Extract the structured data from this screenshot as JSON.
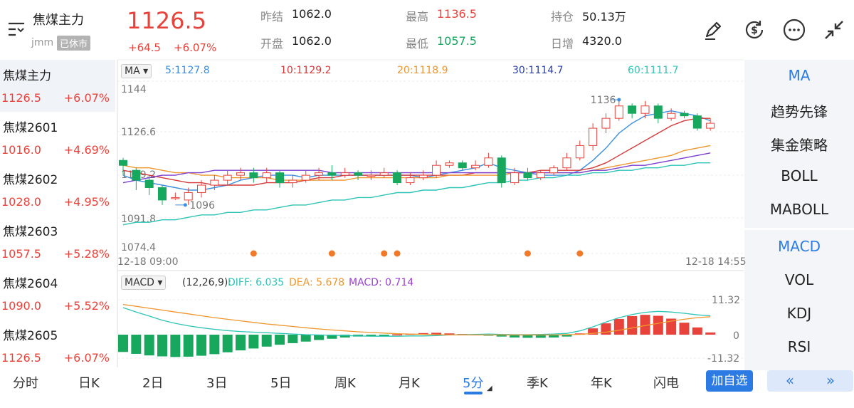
{
  "header": {
    "title": "焦煤主力",
    "code": "jmm",
    "status_badge": "已休市",
    "price": "1126.5",
    "change": "+64.5",
    "change_pct": "+6.07%",
    "stats": [
      {
        "label": "昨结",
        "value": "1062.0",
        "color": "#222222"
      },
      {
        "label": "最高",
        "value": "1136.5",
        "color": "#e8433b"
      },
      {
        "label": "持仓",
        "value": "50.13万",
        "color": "#222222"
      },
      {
        "label": "开盘",
        "value": "1062.0",
        "color": "#222222"
      },
      {
        "label": "最低",
        "value": "1057.5",
        "color": "#17a85e"
      },
      {
        "label": "日增",
        "value": "4320.0",
        "color": "#222222"
      }
    ],
    "toolbar_icons": [
      "pen-icon",
      "currency-swap-icon",
      "more-icon",
      "collapse-icon"
    ]
  },
  "contracts": [
    {
      "name": "焦煤主力",
      "price": "1126.5",
      "pct": "+6.07%"
    },
    {
      "name": "焦煤2601",
      "price": "1016.0",
      "pct": "+4.69%"
    },
    {
      "name": "焦煤2602",
      "price": "1028.0",
      "pct": "+4.95%"
    },
    {
      "name": "焦煤2603",
      "price": "1057.5",
      "pct": "+5.28%"
    },
    {
      "name": "焦煤2604",
      "price": "1090.0",
      "pct": "+5.52%"
    },
    {
      "name": "焦煤2605",
      "price": "1126.5",
      "pct": "+6.07%"
    }
  ],
  "indicators_main": [
    "MA",
    "趋势先锋",
    "集金策略",
    "BOLL",
    "MABOLL"
  ],
  "indicators_sub": [
    "MACD",
    "VOL",
    "KDJ",
    "RSI"
  ],
  "ma_legend": {
    "selector": "MA",
    "items": [
      {
        "text": "5:1127.8",
        "color": "#3b8fe0"
      },
      {
        "text": "10:1129.2",
        "color": "#d63a3a"
      },
      {
        "text": "20:1118.9",
        "color": "#f0962e"
      },
      {
        "text": "30:1114.7",
        "color": "#2a3fa8"
      },
      {
        "text": "60:1111.7",
        "color": "#2ec4b6"
      }
    ]
  },
  "macd_legend": {
    "selector": "MACD",
    "params": "(12,26,9):",
    "diff": "DIFF: 6.035",
    "dea": "DEA: 5.678",
    "macd": "MACD: 0.714",
    "colors": {
      "diff": "#2ec4b6",
      "dea": "#f0962e",
      "macd": "#9b3fd1"
    }
  },
  "axis": {
    "price_labels": [
      "1144",
      "1126.6",
      "1109.2",
      "1091.8",
      "1074.4"
    ],
    "high_marker": "1136",
    "low_marker": "1096",
    "time_start": "12-18 09:00",
    "time_end": "12-18 14:55",
    "macd_labels": [
      "11.32",
      "0",
      "-11.32"
    ]
  },
  "tabs": [
    "分时",
    "日K",
    "2日",
    "3日",
    "5日",
    "周K",
    "月K",
    "5分",
    "季K",
    "年K",
    "闪电"
  ],
  "active_tab": "5分",
  "add_button": "加自选",
  "nav_prev": "«",
  "nav_next": "»",
  "colors": {
    "up": "#e8433b",
    "down": "#17a85e",
    "accent": "#2c7be5"
  },
  "chart_data": {
    "type": "candlestick",
    "interval": "5分",
    "candles": [
      [
        1112,
        1110,
        1113,
        1106
      ],
      [
        1108,
        1104,
        1109,
        1100
      ],
      [
        1104,
        1101,
        1106,
        1098
      ],
      [
        1101,
        1096,
        1102,
        1094
      ],
      [
        1097,
        1097,
        1099,
        1096
      ],
      [
        1096,
        1099,
        1101,
        1094
      ],
      [
        1099,
        1102,
        1104,
        1097
      ],
      [
        1102,
        1104,
        1106,
        1100
      ],
      [
        1104,
        1106,
        1108,
        1102
      ],
      [
        1106,
        1107,
        1109,
        1104
      ],
      [
        1107,
        1105,
        1109,
        1103
      ],
      [
        1105,
        1107,
        1109,
        1103
      ],
      [
        1107,
        1103,
        1108,
        1101
      ],
      [
        1103,
        1104,
        1106,
        1101
      ],
      [
        1104,
        1106,
        1108,
        1103
      ],
      [
        1106,
        1107,
        1109,
        1104
      ],
      [
        1107,
        1106,
        1110,
        1104
      ],
      [
        1106,
        1107,
        1109,
        1105
      ],
      [
        1107,
        1106,
        1108,
        1104
      ],
      [
        1106,
        1106,
        1108,
        1104
      ],
      [
        1106,
        1107,
        1109,
        1105
      ],
      [
        1107,
        1103,
        1108,
        1102
      ],
      [
        1103,
        1105,
        1107,
        1102
      ],
      [
        1105,
        1106,
        1108,
        1104
      ],
      [
        1106,
        1110,
        1112,
        1105
      ],
      [
        1110,
        1111,
        1112,
        1109
      ],
      [
        1111,
        1109,
        1112,
        1108
      ],
      [
        1109,
        1110,
        1112,
        1108
      ],
      [
        1110,
        1113,
        1115,
        1109
      ],
      [
        1113,
        1103,
        1114,
        1101
      ],
      [
        1103,
        1107,
        1109,
        1102
      ],
      [
        1107,
        1105,
        1109,
        1104
      ],
      [
        1105,
        1107,
        1108,
        1104
      ],
      [
        1107,
        1109,
        1110,
        1106
      ],
      [
        1109,
        1113,
        1115,
        1108
      ],
      [
        1113,
        1118,
        1120,
        1112
      ],
      [
        1118,
        1125,
        1127,
        1116
      ],
      [
        1125,
        1129,
        1131,
        1123
      ],
      [
        1129,
        1134,
        1136,
        1128
      ],
      [
        1134,
        1131,
        1135,
        1129
      ],
      [
        1131,
        1134,
        1136,
        1129
      ],
      [
        1134,
        1129,
        1135,
        1127
      ],
      [
        1129,
        1131,
        1133,
        1128
      ],
      [
        1131,
        1130,
        1132,
        1129
      ],
      [
        1130,
        1125,
        1131,
        1124
      ],
      [
        1125,
        1127,
        1129,
        1124
      ]
    ],
    "ma": {
      "ma5": [
        1106,
        1104,
        1103,
        1102,
        1101,
        1100,
        1100,
        1101,
        1102,
        1104,
        1105,
        1106,
        1106,
        1106,
        1105,
        1106,
        1106,
        1106,
        1106,
        1106,
        1106,
        1106,
        1106,
        1105,
        1106,
        1107,
        1108,
        1109,
        1111,
        1109,
        1108,
        1107,
        1106,
        1106,
        1106,
        1108,
        1112,
        1117,
        1123,
        1127,
        1130,
        1131,
        1132,
        1131,
        1130,
        1128
      ],
      "ma10": [
        1108,
        1107,
        1106,
        1105,
        1104,
        1103,
        1103,
        1102,
        1102,
        1102,
        1102,
        1103,
        1103,
        1103,
        1104,
        1105,
        1105,
        1106,
        1106,
        1106,
        1106,
        1106,
        1106,
        1106,
        1106,
        1106,
        1106,
        1107,
        1107,
        1107,
        1107,
        1107,
        1108,
        1108,
        1108,
        1108,
        1109,
        1111,
        1114,
        1117,
        1120,
        1123,
        1126,
        1128,
        1129,
        1129
      ],
      "ma20": [
        1110,
        1109,
        1109,
        1108,
        1107,
        1107,
        1106,
        1106,
        1105,
        1105,
        1105,
        1105,
        1104,
        1104,
        1104,
        1104,
        1104,
        1104,
        1105,
        1105,
        1105,
        1105,
        1105,
        1105,
        1105,
        1106,
        1106,
        1106,
        1106,
        1106,
        1107,
        1107,
        1107,
        1107,
        1107,
        1107,
        1108,
        1109,
        1110,
        1111,
        1112,
        1113,
        1114,
        1116,
        1117,
        1118
      ],
      "ma30": [
        1103,
        1104,
        1105,
        1106,
        1106,
        1107,
        1107,
        1108,
        1108,
        1108,
        1108,
        1108,
        1108,
        1108,
        1108,
        1108,
        1107,
        1107,
        1107,
        1107,
        1107,
        1107,
        1107,
        1107,
        1107,
        1107,
        1107,
        1107,
        1107,
        1107,
        1107,
        1107,
        1107,
        1107,
        1107,
        1107,
        1108,
        1108,
        1109,
        1110,
        1110,
        1111,
        1112,
        1113,
        1114,
        1115
      ],
      "ma60": [
        1086,
        1087,
        1087,
        1088,
        1088,
        1089,
        1090,
        1090,
        1091,
        1091,
        1092,
        1092,
        1093,
        1094,
        1094,
        1095,
        1096,
        1096,
        1097,
        1097,
        1098,
        1099,
        1099,
        1100,
        1100,
        1101,
        1101,
        1102,
        1103,
        1103,
        1104,
        1104,
        1105,
        1105,
        1106,
        1106,
        1107,
        1107,
        1108,
        1108,
        1109,
        1109,
        1110,
        1110,
        1111,
        1111
      ]
    },
    "macd_hist": [
      -5.5,
      -6.1,
      -6.6,
      -6.9,
      -7.1,
      -7.0,
      -6.7,
      -6.2,
      -5.6,
      -5.0,
      -4.4,
      -3.8,
      -3.2,
      -2.7,
      -2.2,
      -1.7,
      -1.3,
      -0.9,
      -0.6,
      -0.3,
      -0.1,
      0.1,
      0.3,
      0.5,
      0.6,
      0.4,
      0.2,
      0.1,
      -0.1,
      -0.6,
      -0.9,
      -1.0,
      -1.0,
      -0.9,
      -0.6,
      0.4,
      2.0,
      3.6,
      5.0,
      5.9,
      6.3,
      6.0,
      5.1,
      3.8,
      2.3,
      0.7
    ],
    "diff": [
      8.6,
      7.2,
      5.9,
      4.6,
      3.6,
      2.8,
      2.2,
      1.7,
      1.3,
      1.0,
      0.8,
      0.6,
      0.4,
      0.2,
      0.0,
      -0.1,
      -0.2,
      -0.3,
      -0.4,
      -0.5,
      -0.5,
      -0.5,
      -0.4,
      -0.4,
      -0.3,
      -0.1,
      0.0,
      0.1,
      0.2,
      0.1,
      0.0,
      0.0,
      0.1,
      0.2,
      0.4,
      1.2,
      2.5,
      4.0,
      5.4,
      6.4,
      7.1,
      7.4,
      7.2,
      6.8,
      6.3,
      6.0
    ],
    "dea": [
      9.6,
      9.0,
      8.4,
      7.8,
      7.2,
      6.6,
      6.0,
      5.4,
      4.9,
      4.4,
      3.9,
      3.4,
      3.0,
      2.6,
      2.2,
      1.8,
      1.5,
      1.2,
      0.9,
      0.7,
      0.5,
      0.3,
      0.2,
      0.1,
      0.0,
      -0.1,
      -0.1,
      -0.1,
      -0.1,
      -0.1,
      -0.1,
      -0.1,
      -0.1,
      -0.1,
      0.0,
      0.1,
      0.4,
      0.8,
      1.4,
      2.1,
      2.9,
      3.6,
      4.3,
      4.9,
      5.4,
      5.7
    ]
  }
}
